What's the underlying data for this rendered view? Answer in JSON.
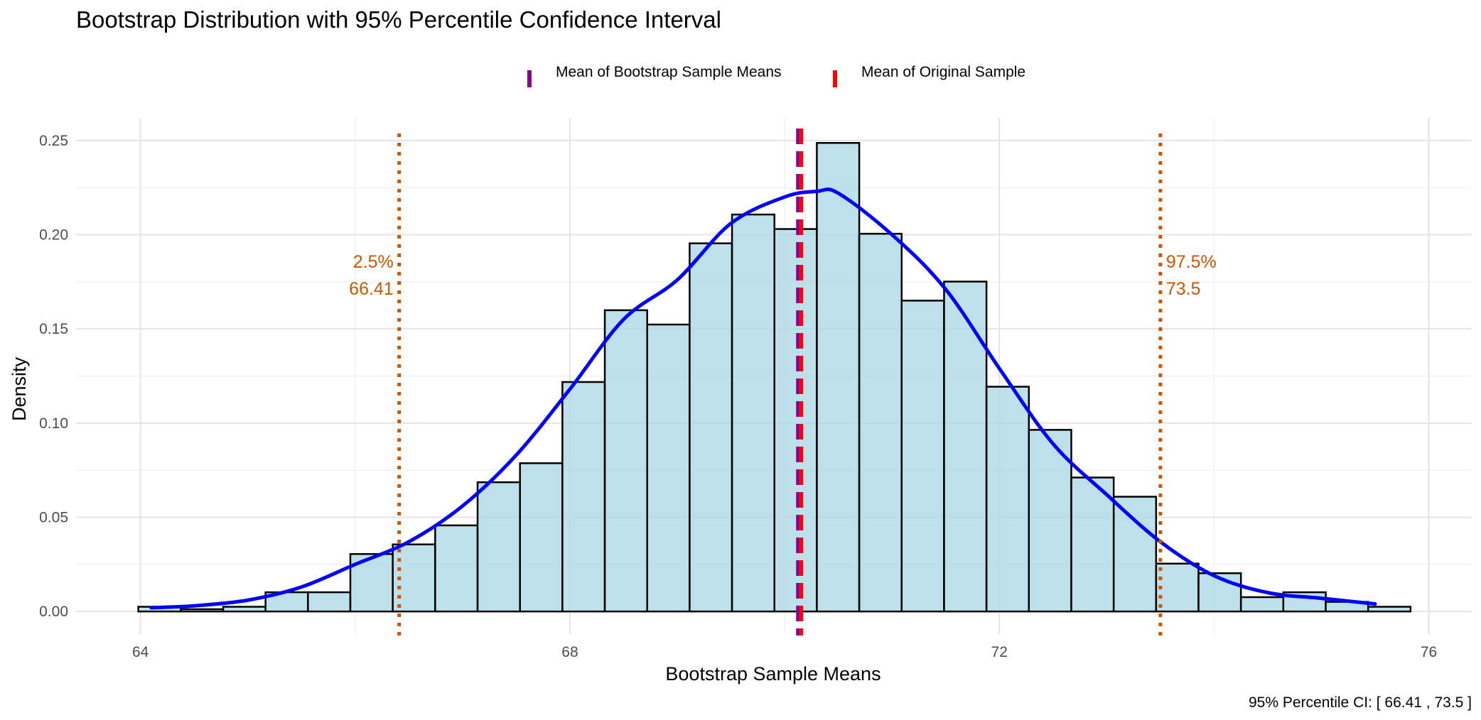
{
  "chart_data": {
    "type": "bar",
    "title": "Bootstrap Distribution with 95% Percentile Confidence Interval",
    "xlabel": "Bootstrap Sample Means",
    "ylabel": "Density",
    "xlim": [
      63.4,
      76.4
    ],
    "ylim": [
      -0.012,
      0.262
    ],
    "x_ticks": [
      64,
      68,
      72,
      76
    ],
    "x_tick_labels": [
      "64",
      "68",
      "72",
      "76"
    ],
    "y_ticks": [
      0.0,
      0.05,
      0.1,
      0.15,
      0.2,
      0.25
    ],
    "y_tick_labels": [
      "0.00",
      "0.05",
      "0.10",
      "0.15",
      "0.20",
      "0.25"
    ],
    "grid": true,
    "legend_position": "top",
    "bin_width": 0.395,
    "histogram": {
      "bin_edges": [
        63.98,
        64.375,
        64.77,
        65.165,
        65.56,
        65.955,
        66.35,
        66.745,
        67.14,
        67.535,
        67.93,
        68.325,
        68.72,
        69.115,
        69.51,
        69.905,
        70.3,
        70.695,
        71.09,
        71.485,
        71.88,
        72.275,
        72.67,
        73.065,
        73.46,
        73.855,
        74.25,
        74.645,
        75.04,
        75.435,
        75.83
      ],
      "densities": [
        0.0025,
        0.0012,
        0.0025,
        0.0102,
        0.0102,
        0.0305,
        0.0356,
        0.0457,
        0.0686,
        0.0787,
        0.1218,
        0.1599,
        0.1523,
        0.1954,
        0.2107,
        0.203,
        0.2487,
        0.2005,
        0.165,
        0.1751,
        0.1193,
        0.0964,
        0.0711,
        0.0609,
        0.0254,
        0.0203,
        0.0076,
        0.0102,
        0.0051,
        0.0025
      ]
    },
    "density_curve": {
      "x": [
        64.1,
        64.5,
        65.0,
        65.5,
        66.0,
        66.5,
        67.0,
        67.5,
        68.0,
        68.5,
        69.0,
        69.5,
        70.0,
        70.3,
        70.5,
        71.0,
        71.5,
        72.0,
        72.5,
        73.0,
        73.5,
        74.0,
        74.5,
        75.0,
        75.5
      ],
      "y": [
        0.002,
        0.003,
        0.006,
        0.013,
        0.025,
        0.037,
        0.056,
        0.083,
        0.118,
        0.155,
        0.176,
        0.206,
        0.22,
        0.223,
        0.222,
        0.2,
        0.171,
        0.129,
        0.089,
        0.062,
        0.037,
        0.019,
        0.01,
        0.007,
        0.004
      ]
    },
    "vlines": [
      {
        "name": "Mean of Bootstrap Sample Means",
        "x": 70.14,
        "color": "#8b008b",
        "style": "dashed"
      },
      {
        "name": "Mean of Original Sample",
        "x": 70.14,
        "color": "#ff0000",
        "style": "dashed"
      },
      {
        "x": 66.41,
        "color": "#cc5500",
        "style": "dotted"
      },
      {
        "x": 73.5,
        "color": "#cc5500",
        "style": "dotted"
      }
    ],
    "annotations": [
      {
        "x": 66.41,
        "side": "left",
        "lines": [
          "2.5%",
          "66.41"
        ]
      },
      {
        "x": 73.5,
        "side": "right",
        "lines": [
          "97.5%",
          "73.5"
        ]
      }
    ],
    "legend": [
      "Mean of Bootstrap Sample Means",
      "Mean of Original Sample"
    ],
    "caption": "95% Percentile CI: [ 66.41 ,  73.5 ]",
    "colors": {
      "bar_fill": "#add8e6",
      "bar_stroke": "#000000",
      "density": "#0000ff",
      "ci": "#cc5500",
      "bootstrap_mean": "#8b008b",
      "original_mean": "#ff0000"
    }
  }
}
